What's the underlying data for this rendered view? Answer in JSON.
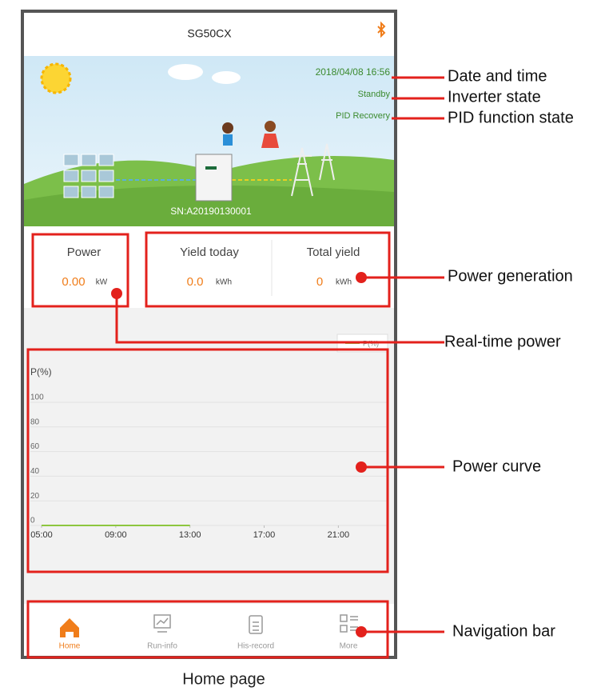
{
  "header": {
    "title": "SG50CX"
  },
  "status": {
    "datetime": "2018/04/08 16:56",
    "inverter_state": "Standby",
    "pid_state": "PID Recovery",
    "serial": "SN:A20190130001"
  },
  "stats": [
    {
      "label": "Power",
      "value": "0.00",
      "unit": "kW"
    },
    {
      "label": "Yield today",
      "value": "0.0",
      "unit": "kWh"
    },
    {
      "label": "Total yield",
      "value": "0",
      "unit": "kWh"
    }
  ],
  "chart_data": {
    "type": "line",
    "y_label": "P(%)",
    "x": [
      5,
      7,
      9,
      11,
      13
    ],
    "series": [
      {
        "name": "P(%)",
        "color": "#8dc63f",
        "values": [
          0,
          0,
          0,
          0,
          0
        ]
      }
    ],
    "xlim": [
      5,
      24
    ],
    "ylim": [
      0,
      100
    ],
    "xticks": [
      {
        "value": 5,
        "label": "05:00"
      },
      {
        "value": 9,
        "label": "09:00"
      },
      {
        "value": 13,
        "label": "13:00"
      },
      {
        "value": 17,
        "label": "17:00"
      },
      {
        "value": 21,
        "label": "21:00"
      }
    ],
    "yticks": [
      0,
      20,
      40,
      60,
      80,
      100
    ],
    "grid": true
  },
  "nav": [
    "Home",
    "Run-info",
    "His-record",
    "More"
  ],
  "annotations": [
    "Date and time",
    "Inverter state",
    "PID function state",
    "Power generation",
    "Real-time power",
    "Power curve",
    "Navigation bar"
  ],
  "caption": "Home page"
}
